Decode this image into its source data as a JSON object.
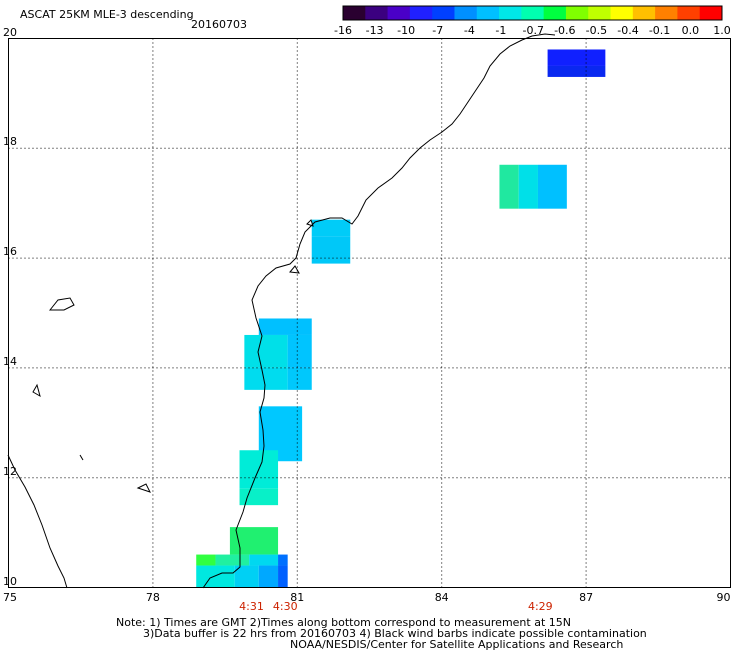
{
  "header": {
    "title": "ASCAT 25KM MLE-3 descending",
    "date": "20160703"
  },
  "colorbar": {
    "colors": [
      "#2a0030",
      "#3b0080",
      "#4a00c8",
      "#2020ff",
      "#0040ff",
      "#0090ff",
      "#00c0ff",
      "#00e8e8",
      "#00ffb0",
      "#00ff40",
      "#80ff00",
      "#c0ff00",
      "#ffff00",
      "#ffc000",
      "#ff8000",
      "#ff4000",
      "#ff0000"
    ],
    "tick_labels": [
      "-16",
      "-13",
      "-10",
      "-7",
      "-4",
      "-1",
      "-0.7",
      "-0.6",
      "-0.5",
      "-0.4",
      "-0.1",
      "0.0",
      "1.0"
    ]
  },
  "map": {
    "lon_range": [
      75,
      90
    ],
    "lat_range": [
      10,
      20
    ],
    "lon_ticks": [
      "75",
      "78",
      "81",
      "84",
      "87",
      "90"
    ],
    "lat_ticks": [
      "10",
      "12",
      "14",
      "16",
      "18",
      "20"
    ],
    "grid": "dotted",
    "coastline_color": "#000000",
    "land": "white",
    "time_labels": [
      {
        "label": "4:31",
        "lon": 80.0
      },
      {
        "label": "4:30",
        "lon": 80.7
      },
      {
        "label": "4:29",
        "lon": 86.0
      }
    ],
    "data_cells": [
      {
        "lon0": 86.2,
        "lon1": 87.4,
        "lat0": 19.5,
        "lat1": 19.8,
        "color": "#1020ff"
      },
      {
        "lon0": 86.2,
        "lon1": 87.4,
        "lat0": 19.3,
        "lat1": 19.5,
        "color": "#0a28f0"
      },
      {
        "lon0": 85.2,
        "lon1": 85.6,
        "lat0": 16.9,
        "lat1": 17.7,
        "color": "#20e8a0"
      },
      {
        "lon0": 85.6,
        "lon1": 86.0,
        "lat0": 16.9,
        "lat1": 17.7,
        "color": "#00e0e8"
      },
      {
        "lon0": 86.0,
        "lon1": 86.6,
        "lat0": 16.9,
        "lat1": 17.7,
        "color": "#00c0ff"
      },
      {
        "lon0": 81.3,
        "lon1": 82.1,
        "lat0": 16.4,
        "lat1": 16.7,
        "color": "#00ccf8"
      },
      {
        "lon0": 81.3,
        "lon1": 82.1,
        "lat0": 15.9,
        "lat1": 16.4,
        "color": "#00c8f8"
      },
      {
        "lon0": 80.2,
        "lon1": 81.3,
        "lat0": 14.6,
        "lat1": 14.9,
        "color": "#00c0ff"
      },
      {
        "lon0": 79.9,
        "lon1": 80.8,
        "lat0": 14.0,
        "lat1": 14.6,
        "color": "#00e0e8"
      },
      {
        "lon0": 80.8,
        "lon1": 81.3,
        "lat0": 14.0,
        "lat1": 14.6,
        "color": "#00c4ff"
      },
      {
        "lon0": 79.9,
        "lon1": 80.8,
        "lat0": 13.6,
        "lat1": 14.0,
        "color": "#00dcef"
      },
      {
        "lon0": 80.8,
        "lon1": 81.3,
        "lat0": 13.6,
        "lat1": 14.0,
        "color": "#00c8fc"
      },
      {
        "lon0": 80.2,
        "lon1": 81.1,
        "lat0": 12.3,
        "lat1": 13.3,
        "color": "#00c8ff"
      },
      {
        "lon0": 79.8,
        "lon1": 80.6,
        "lat0": 11.8,
        "lat1": 12.5,
        "color": "#00ecd8"
      },
      {
        "lon0": 79.8,
        "lon1": 80.6,
        "lat0": 11.5,
        "lat1": 11.8,
        "color": "#08f0c8"
      },
      {
        "lon0": 79.6,
        "lon1": 80.6,
        "lat0": 10.6,
        "lat1": 11.1,
        "color": "#20f070"
      },
      {
        "lon0": 78.9,
        "lon1": 79.3,
        "lat0": 10.4,
        "lat1": 10.6,
        "color": "#30ff40"
      },
      {
        "lon0": 79.3,
        "lon1": 80.0,
        "lat0": 10.4,
        "lat1": 10.6,
        "color": "#20f0a0"
      },
      {
        "lon0": 80.0,
        "lon1": 80.6,
        "lat0": 10.4,
        "lat1": 10.6,
        "color": "#00d8f0"
      },
      {
        "lon0": 80.6,
        "lon1": 80.8,
        "lat0": 10.4,
        "lat1": 10.6,
        "color": "#0070ff"
      },
      {
        "lon0": 78.9,
        "lon1": 79.7,
        "lat0": 10.0,
        "lat1": 10.4,
        "color": "#00e8e0"
      },
      {
        "lon0": 79.7,
        "lon1": 80.2,
        "lat0": 10.0,
        "lat1": 10.4,
        "color": "#00d0f4"
      },
      {
        "lon0": 80.2,
        "lon1": 80.6,
        "lat0": 10.0,
        "lat1": 10.4,
        "color": "#00a8ff"
      },
      {
        "lon0": 80.6,
        "lon1": 80.8,
        "lat0": 10.0,
        "lat1": 10.4,
        "color": "#0060ff"
      }
    ]
  },
  "notes": {
    "line1": "Note: 1) Times are GMT 2)Times along bottom correspond to measurement at 15N",
    "line2": "3)Data buffer is 22 hrs from 20160703 4) Black wind barbs indicate possible contamination",
    "line3": "NOAA/NESDIS/Center for Satellite Applications and Research"
  }
}
